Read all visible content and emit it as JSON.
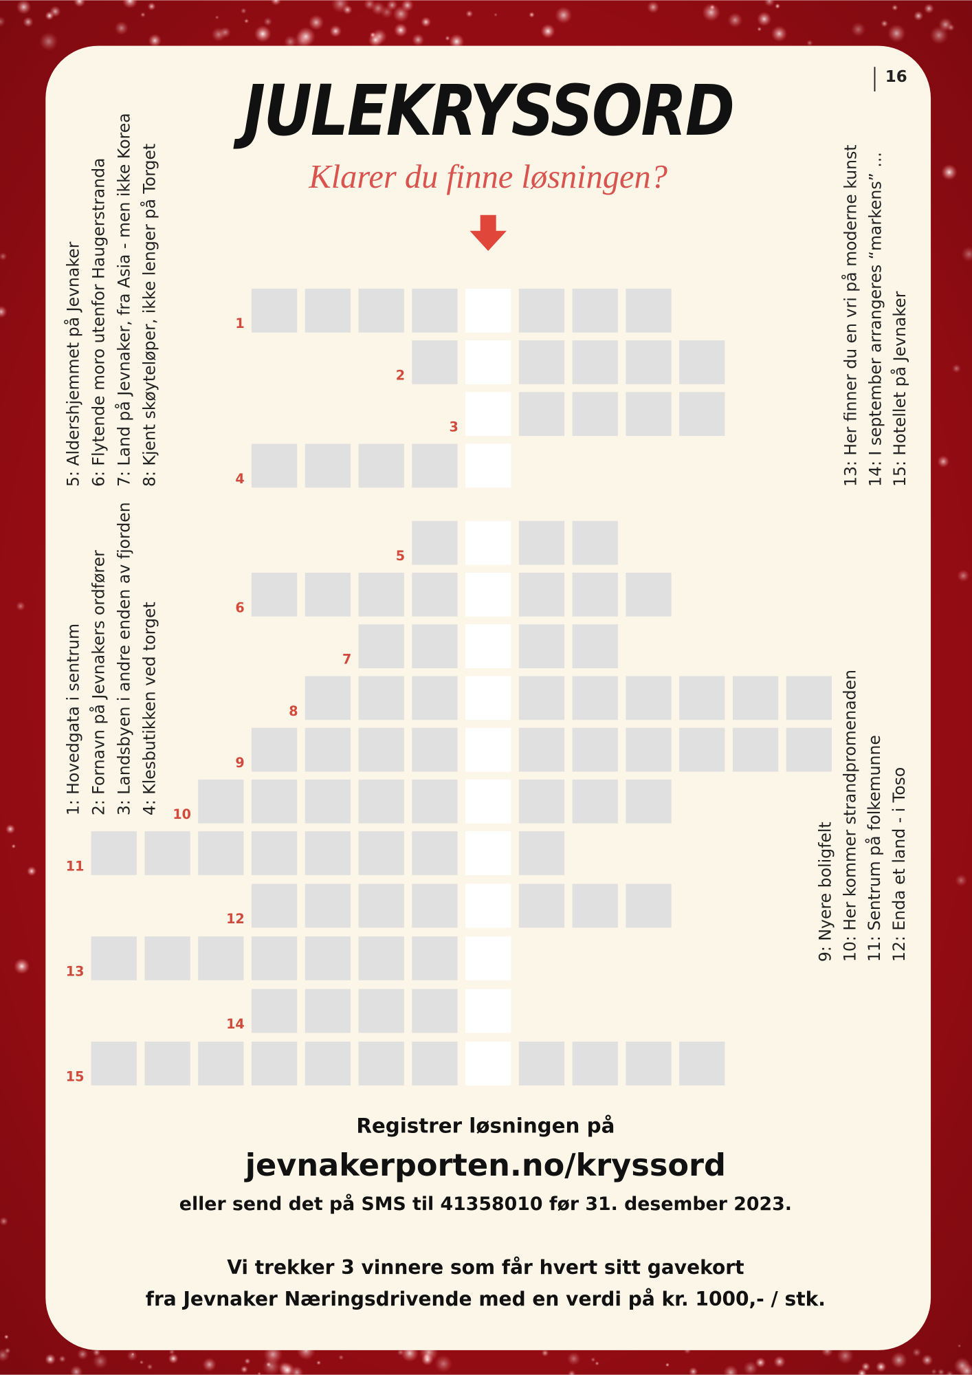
{
  "page_number": "16",
  "title": "JULEKRYSSORD",
  "subtitle": "Klarer du finne løsningen?",
  "clues": {
    "left_top": [
      "5: Aldershjemmet på Jevnaker",
      "6: Flytende moro utenfor Haugerstranda",
      "7: Land på Jevnaker, fra Asia - men ikke Korea",
      "8: Kjent skøyteløper, ikke lenger på Torget"
    ],
    "left_bottom": [
      "1: Hovedgata i sentrum",
      "2: Fornavn på Jevnakers ordfører",
      "3: Landsbyen i andre enden av fjorden",
      "4: Klesbutikken ved torget"
    ],
    "right_top": [
      "13: Her finner du en vri på moderne kunst",
      "14: I september arrangeres “markens” ...",
      "15: Hotellet på Jevnaker"
    ],
    "right_bottom": [
      "9: Nyere boligfelt",
      "10: Her kommer strandpromenaden",
      "11: Sentrum på folkemunne",
      "12: Enda et land - i Toso"
    ]
  },
  "crossword": {
    "row_labels": [
      "1",
      "2",
      "3",
      "4",
      "5",
      "6",
      "7",
      "8",
      "9",
      "10",
      "11",
      "12",
      "13",
      "14",
      "15"
    ]
  },
  "footer": {
    "register": "Registrer løsningen på",
    "url": "jevnakerporten.no/kryssord",
    "sms": "eller send det på SMS til 41358010 før 31. desember 2023.",
    "draw_line1": "Vi trekker 3 vinnere som får hvert sitt gavekort",
    "draw_line2": "fra Jevnaker Næringsdrivende med en verdi på kr. 1000,- / stk."
  }
}
